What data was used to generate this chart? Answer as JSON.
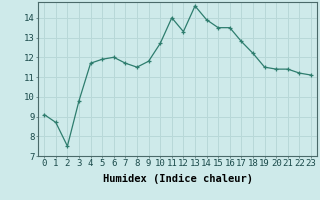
{
  "x": [
    0,
    1,
    2,
    3,
    4,
    5,
    6,
    7,
    8,
    9,
    10,
    11,
    12,
    13,
    14,
    15,
    16,
    17,
    18,
    19,
    20,
    21,
    22,
    23
  ],
  "y": [
    9.1,
    8.7,
    7.5,
    9.8,
    11.7,
    11.9,
    12.0,
    11.7,
    11.5,
    11.8,
    12.7,
    14.0,
    13.3,
    14.6,
    13.9,
    13.5,
    13.5,
    12.8,
    12.2,
    11.5,
    11.4,
    11.4,
    11.2,
    11.1
  ],
  "line_color": "#2e7d6e",
  "marker": "+",
  "bg_color": "#ceeaea",
  "grid_color": "#b8d8d8",
  "xlabel": "Humidex (Indice chaleur)",
  "ylim": [
    7,
    14.8
  ],
  "xlim": [
    -0.5,
    23.5
  ],
  "yticks": [
    7,
    8,
    9,
    10,
    11,
    12,
    13,
    14
  ],
  "xticks": [
    0,
    1,
    2,
    3,
    4,
    5,
    6,
    7,
    8,
    9,
    10,
    11,
    12,
    13,
    14,
    15,
    16,
    17,
    18,
    19,
    20,
    21,
    22,
    23
  ],
  "xtick_labels": [
    "0",
    "1",
    "2",
    "3",
    "4",
    "5",
    "6",
    "7",
    "8",
    "9",
    "10",
    "11",
    "12",
    "13",
    "14",
    "15",
    "16",
    "17",
    "18",
    "19",
    "20",
    "21",
    "22",
    "23"
  ],
  "tick_fontsize": 6.5,
  "label_fontsize": 7.5,
  "label_fontweight": "bold"
}
